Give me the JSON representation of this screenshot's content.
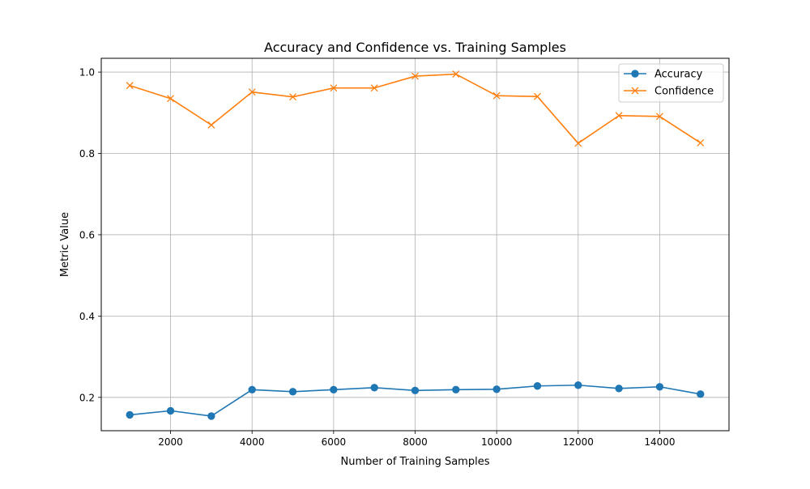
{
  "chart_data": {
    "type": "line",
    "title": "Accuracy and Confidence vs. Training Samples",
    "xlabel": "Number of Training Samples",
    "ylabel": "Metric Value",
    "xlim": [
      300,
      15700
    ],
    "ylim": [
      0.118,
      1.034
    ],
    "grid": true,
    "legend_position": "top-right",
    "x_ticks": [
      2000,
      4000,
      6000,
      8000,
      10000,
      12000,
      14000
    ],
    "x_tick_labels": [
      "2000",
      "4000",
      "6000",
      "8000",
      "10000",
      "12000",
      "14000"
    ],
    "y_ticks": [
      0.2,
      0.4,
      0.6,
      0.8,
      1.0
    ],
    "y_tick_labels": [
      "0.2",
      "0.4",
      "0.6",
      "0.8",
      "1.0"
    ],
    "x": [
      1000,
      2000,
      3000,
      4000,
      5000,
      6000,
      7000,
      8000,
      9000,
      10000,
      11000,
      12000,
      13000,
      14000,
      15000
    ],
    "series": [
      {
        "name": "Accuracy",
        "color": "#1f77b4",
        "marker": "circle",
        "values": [
          0.157,
          0.167,
          0.154,
          0.219,
          0.214,
          0.219,
          0.224,
          0.217,
          0.219,
          0.22,
          0.228,
          0.23,
          0.222,
          0.226,
          0.208
        ]
      },
      {
        "name": "Confidence",
        "color": "#ff7f0e",
        "marker": "x",
        "values": [
          0.967,
          0.935,
          0.87,
          0.951,
          0.939,
          0.961,
          0.961,
          0.99,
          0.995,
          0.942,
          0.94,
          0.825,
          0.893,
          0.891,
          0.826
        ]
      }
    ]
  }
}
